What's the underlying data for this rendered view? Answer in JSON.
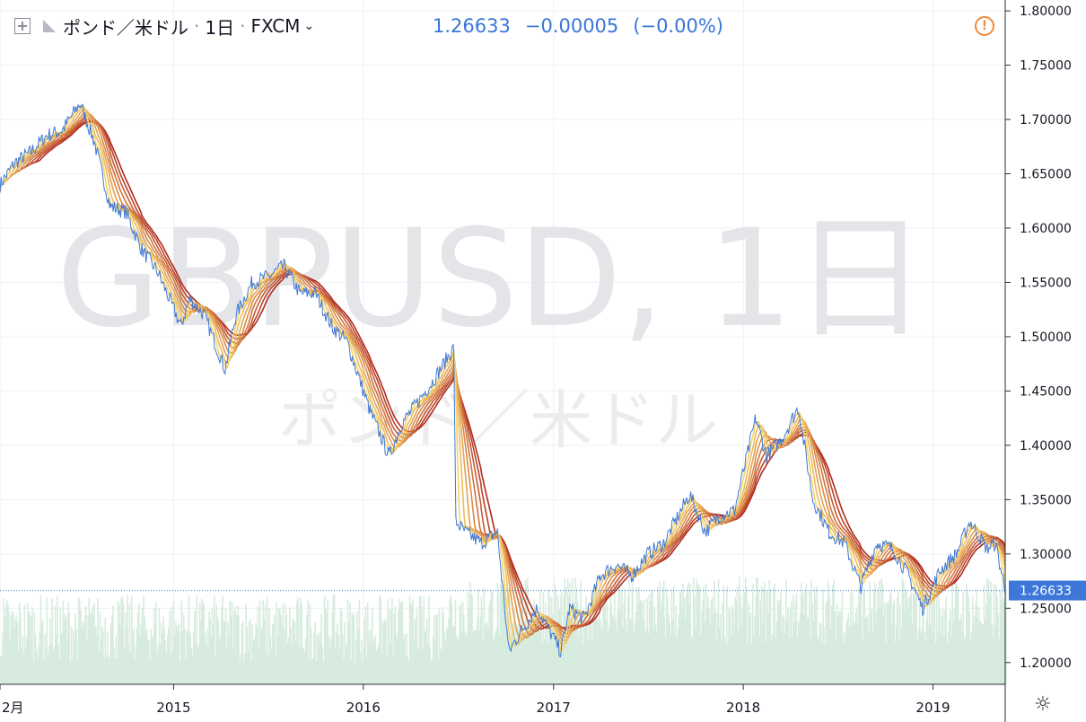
{
  "header": {
    "symbol": "ポンド／米ドル",
    "interval": "1日",
    "exchange": "FXCM"
  },
  "quote": {
    "price": "1.26633",
    "change": "−0.00005",
    "change_pct": "(−0.00%)"
  },
  "watermark": {
    "symbol": "GBPUSD, 1日",
    "description": "ポンド／米ドル"
  },
  "colors": {
    "price_line": "#3d78d8",
    "ribbon_fast": "#f8d468",
    "ribbon_slow": "#b02a1f",
    "volume": "#d7ecdf",
    "last_price_label": "#3d78d8",
    "warning": "#ef8a3a"
  },
  "icons": {
    "expand": "expand-icon",
    "flag": "flag-icon",
    "warning": "warning-icon",
    "settings": "gear-icon"
  },
  "chart_data": {
    "type": "line",
    "title": "",
    "xlabel": "",
    "ylabel": "",
    "x_tick_labels": [
      "2月",
      "2015",
      "2016",
      "2017",
      "2018",
      "2019"
    ],
    "x_tick_dates": [
      "2014-02-01",
      "2015-01-01",
      "2016-01-01",
      "2017-01-01",
      "2018-01-01",
      "2019-01-01"
    ],
    "x_range": [
      "2014-02-01",
      "2019-05-20"
    ],
    "ylim": [
      1.18,
      1.81
    ],
    "y_ticks": [
      "1.20000",
      "1.25000",
      "1.30000",
      "1.35000",
      "1.40000",
      "1.45000",
      "1.50000",
      "1.55000",
      "1.60000",
      "1.65000",
      "1.70000",
      "1.75000",
      "1.80000"
    ],
    "grid": true,
    "last_price": 1.26633,
    "last_price_label": "1.26633",
    "series": [
      {
        "kind": "close",
        "points": [
          [
            "2014-02-01",
            1.64
          ],
          [
            "2014-03-01",
            1.66
          ],
          [
            "2014-04-01",
            1.67
          ],
          [
            "2014-05-01",
            1.685
          ],
          [
            "2014-06-01",
            1.69
          ],
          [
            "2014-07-05",
            1.715
          ],
          [
            "2014-08-01",
            1.68
          ],
          [
            "2014-09-01",
            1.62
          ],
          [
            "2014-10-01",
            1.615
          ],
          [
            "2014-11-01",
            1.58
          ],
          [
            "2014-12-01",
            1.56
          ],
          [
            "2015-01-15",
            1.51
          ],
          [
            "2015-02-01",
            1.535
          ],
          [
            "2015-03-01",
            1.52
          ],
          [
            "2015-04-10",
            1.47
          ],
          [
            "2015-05-01",
            1.52
          ],
          [
            "2015-06-01",
            1.55
          ],
          [
            "2015-07-01",
            1.555
          ],
          [
            "2015-08-01",
            1.565
          ],
          [
            "2015-09-01",
            1.54
          ],
          [
            "2015-10-01",
            1.54
          ],
          [
            "2015-11-01",
            1.51
          ],
          [
            "2015-12-01",
            1.495
          ],
          [
            "2016-01-15",
            1.43
          ],
          [
            "2016-02-20",
            1.39
          ],
          [
            "2016-03-15",
            1.42
          ],
          [
            "2016-04-15",
            1.44
          ],
          [
            "2016-05-15",
            1.46
          ],
          [
            "2016-06-23",
            1.49
          ],
          [
            "2016-06-27",
            1.33
          ],
          [
            "2016-07-15",
            1.32
          ],
          [
            "2016-08-15",
            1.31
          ],
          [
            "2016-09-15",
            1.32
          ],
          [
            "2016-10-07",
            1.21
          ],
          [
            "2016-11-01",
            1.23
          ],
          [
            "2016-12-01",
            1.25
          ],
          [
            "2017-01-15",
            1.21
          ],
          [
            "2017-02-01",
            1.25
          ],
          [
            "2017-03-01",
            1.24
          ],
          [
            "2017-04-01",
            1.28
          ],
          [
            "2017-05-01",
            1.29
          ],
          [
            "2017-06-01",
            1.28
          ],
          [
            "2017-07-01",
            1.3
          ],
          [
            "2017-08-01",
            1.31
          ],
          [
            "2017-09-20",
            1.355
          ],
          [
            "2017-10-20",
            1.32
          ],
          [
            "2017-11-15",
            1.335
          ],
          [
            "2017-12-15",
            1.34
          ],
          [
            "2018-01-25",
            1.425
          ],
          [
            "2018-02-15",
            1.39
          ],
          [
            "2018-03-15",
            1.405
          ],
          [
            "2018-04-17",
            1.435
          ],
          [
            "2018-05-15",
            1.35
          ],
          [
            "2018-06-15",
            1.32
          ],
          [
            "2018-07-15",
            1.31
          ],
          [
            "2018-08-15",
            1.27
          ],
          [
            "2018-09-15",
            1.31
          ],
          [
            "2018-10-15",
            1.305
          ],
          [
            "2018-11-15",
            1.28
          ],
          [
            "2018-12-12",
            1.25
          ],
          [
            "2019-01-15",
            1.285
          ],
          [
            "2019-02-15",
            1.3
          ],
          [
            "2019-03-13",
            1.33
          ],
          [
            "2019-04-15",
            1.305
          ],
          [
            "2019-05-01",
            1.31
          ],
          [
            "2019-05-20",
            1.2663
          ]
        ]
      }
    ],
    "ribbon_lengths": [
      5,
      10,
      15,
      20,
      25,
      30,
      35,
      40
    ]
  }
}
